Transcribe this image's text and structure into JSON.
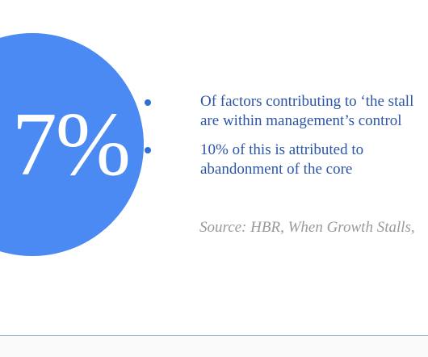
{
  "stat": {
    "value": "7%"
  },
  "bullets": [
    {
      "line1": "Of factors contributing to ‘the stall",
      "line2": "are within management’s control"
    },
    {
      "line1": "10% of this is attributed to",
      "line2": "abandonment of the core"
    }
  ],
  "source": "Source: HBR, When Growth Stalls,",
  "colors": {
    "circle": "#4a8af2",
    "bullet_text": "#2b55a6",
    "source_text": "#9a9a9a"
  }
}
